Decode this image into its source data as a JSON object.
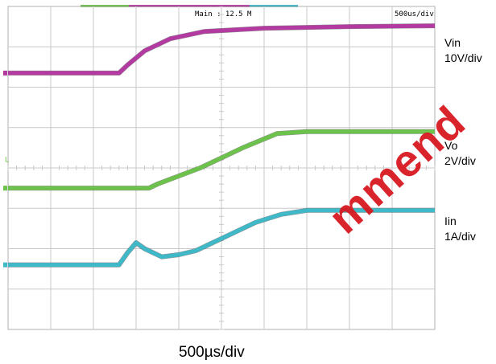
{
  "header": {
    "timebase_readout": "Main : 12.5 M",
    "div_readout": "500us/div"
  },
  "channels": [
    {
      "name": "Vin",
      "scale": "10V/div",
      "color": "#b23aa0"
    },
    {
      "name": "Vo",
      "scale": "2V/div",
      "color": "#6cc24a"
    },
    {
      "name": "Iin",
      "scale": "1A/div",
      "color": "#3fb8c8"
    }
  ],
  "xaxis_label": "500µs/div",
  "watermark": "mmend",
  "colors": {
    "grid": "#c8c8c8",
    "frame": "#b0b0b0"
  },
  "chart_data": {
    "type": "line",
    "title": "",
    "xlabel": "500µs/div",
    "ylabel": "",
    "x_unit": "div",
    "xlim": [
      0,
      10
    ],
    "ylim_div": [
      -4,
      4
    ],
    "grid": true,
    "series": [
      {
        "name": "Vin",
        "scale": "10V/div",
        "points": [
          [
            0,
            2.35
          ],
          [
            2.6,
            2.35
          ],
          [
            2.8,
            2.55
          ],
          [
            3.2,
            2.9
          ],
          [
            3.8,
            3.2
          ],
          [
            4.6,
            3.38
          ],
          [
            6.0,
            3.46
          ],
          [
            8.0,
            3.5
          ],
          [
            10.0,
            3.52
          ]
        ]
      },
      {
        "name": "Vo",
        "scale": "2V/div",
        "points": [
          [
            0,
            -0.5
          ],
          [
            3.3,
            -0.5
          ],
          [
            3.5,
            -0.4
          ],
          [
            4.5,
            0.0
          ],
          [
            5.5,
            0.5
          ],
          [
            6.3,
            0.85
          ],
          [
            7.0,
            0.9
          ],
          [
            10.0,
            0.9
          ]
        ]
      },
      {
        "name": "Iin",
        "scale": "1A/div",
        "points": [
          [
            0,
            -2.4
          ],
          [
            2.6,
            -2.4
          ],
          [
            2.8,
            -2.1
          ],
          [
            3.0,
            -1.85
          ],
          [
            3.2,
            -2.0
          ],
          [
            3.6,
            -2.2
          ],
          [
            4.0,
            -2.15
          ],
          [
            4.4,
            -2.05
          ],
          [
            5.0,
            -1.75
          ],
          [
            5.8,
            -1.35
          ],
          [
            6.4,
            -1.15
          ],
          [
            7.0,
            -1.05
          ],
          [
            8.0,
            -1.05
          ],
          [
            10.0,
            -1.05
          ]
        ]
      }
    ]
  }
}
